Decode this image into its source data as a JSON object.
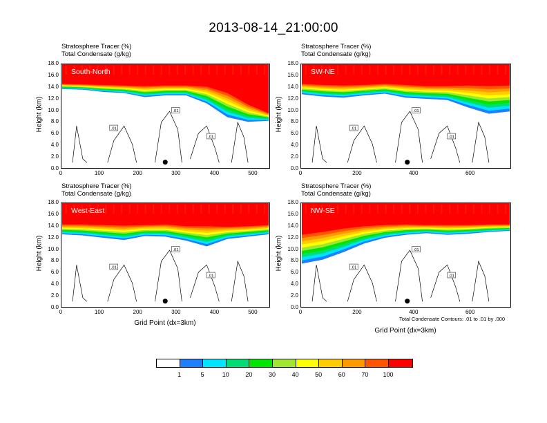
{
  "title": "2013-08-14_21:00:00",
  "headers": {
    "line1": "Stratosphere Tracer   (%)",
    "line2": "Total Condensate   (g/kg)"
  },
  "y_axis": {
    "label": "Height (km)",
    "ticks": [
      "0.0",
      "2.0",
      "4.0",
      "6.0",
      "8.0",
      "10.0",
      "12.0",
      "14.0",
      "16.0",
      "18.0"
    ]
  },
  "x_axis_label": "Grid Point (dx=3km)",
  "contour_note": "Total Condensate Contours: .01 to .01 by .000",
  "colors": [
    "#ffffff",
    "#1e7fff",
    "#00e5ff",
    "#00dd77",
    "#00e600",
    "#a0e632",
    "#ffff00",
    "#ffcc00",
    "#ff9900",
    "#ff5500",
    "#ff0000"
  ],
  "colorbar_labels": [
    "1",
    "5",
    "10",
    "20",
    "30",
    "40",
    "50",
    "60",
    "70",
    "100"
  ],
  "chart_data": [
    {
      "type": "heatmap",
      "panel": "South-North",
      "title": "South-North",
      "xlabel": "",
      "ylabel": "Height (km)",
      "xlim": [
        0,
        545
      ],
      "ylim": [
        0,
        18
      ],
      "x_ticks": [
        "0",
        "100",
        "200",
        "300",
        "400",
        "500"
      ],
      "tracer_100pct_base_km": [
        14.6,
        14.5,
        14.4,
        14.3,
        14.2,
        14.3,
        14.3,
        14.1,
        13.0,
        11.0,
        9.5
      ],
      "tracer_1pct_base_km": [
        13.7,
        13.6,
        13.2,
        13.0,
        12.3,
        12.6,
        12.6,
        11.2,
        8.8,
        8.0,
        8.2
      ],
      "contour_label": ".01",
      "marker": {
        "x": 272,
        "y_km": 1.0
      }
    },
    {
      "type": "heatmap",
      "panel": "SW-NE",
      "title": "SW-NE",
      "xlabel": "",
      "ylabel": "Height (km)",
      "xlim": [
        0,
        745
      ],
      "ylim": [
        0,
        18
      ],
      "x_ticks": [
        "0",
        "200",
        "400",
        "600"
      ],
      "tracer_100pct_base_km": [
        14.6,
        14.4,
        14.3,
        14.4,
        14.6,
        14.4,
        14.2,
        14.2,
        14.3,
        14.2,
        14.3
      ],
      "tracer_1pct_base_km": [
        12.8,
        12.4,
        12.2,
        12.6,
        12.9,
        12.2,
        12.0,
        11.8,
        10.5,
        9.4,
        9.8
      ],
      "contour_label": ".01",
      "marker": {
        "x": 378,
        "y_km": 1.0
      }
    },
    {
      "type": "heatmap",
      "panel": "West-East",
      "title": "West-East",
      "xlabel": "Grid Point (dx=3km)",
      "ylabel": "Height (km)",
      "xlim": [
        0,
        545
      ],
      "ylim": [
        0,
        18
      ],
      "x_ticks": [
        "0",
        "100",
        "200",
        "300",
        "400",
        "500"
      ],
      "tracer_100pct_base_km": [
        14.3,
        14.3,
        14.2,
        14.1,
        14.2,
        14.3,
        14.0,
        14.0,
        13.9,
        14.0,
        14.2
      ],
      "tracer_1pct_base_km": [
        12.6,
        12.4,
        12.0,
        11.6,
        12.3,
        12.2,
        11.5,
        10.5,
        11.8,
        12.2,
        12.6
      ],
      "contour_label": ".01",
      "marker": {
        "x": 272,
        "y_km": 1.0
      }
    },
    {
      "type": "heatmap",
      "panel": "NW-SE",
      "title": "NW-SE",
      "xlabel": "Grid Point (dx=3km)",
      "ylabel": "Height (km)",
      "xlim": [
        0,
        745
      ],
      "ylim": [
        0,
        18
      ],
      "x_ticks": [
        "0",
        "200",
        "400",
        "600"
      ],
      "tracer_100pct_base_km": [
        12.5,
        13.0,
        13.6,
        14.0,
        14.2,
        14.3,
        14.2,
        14.2,
        14.2,
        14.3,
        14.3
      ],
      "tracer_1pct_base_km": [
        7.5,
        8.2,
        9.5,
        11.0,
        12.0,
        12.5,
        12.8,
        12.5,
        12.7,
        13.0,
        13.2
      ],
      "contour_label": ".01",
      "marker": {
        "x": 378,
        "y_km": 1.0
      }
    }
  ]
}
